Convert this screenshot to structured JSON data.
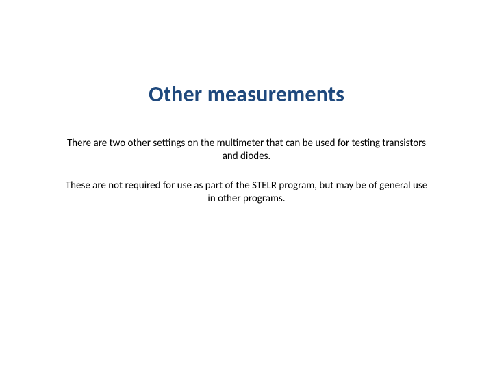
{
  "slide": {
    "title": "Other measurements",
    "paragraph1": "There are two other settings on the multimeter that can be used for testing transistors and diodes.",
    "paragraph2": "These are not required for use as part of the STELR program, but may be of general use in other programs.",
    "title_color": "#1f497d",
    "body_color": "#000000",
    "background_color": "#ffffff",
    "title_fontsize": 32,
    "body_fontsize": 15,
    "title_weight": 700,
    "body_weight": 400,
    "font_family": "Calibri"
  }
}
